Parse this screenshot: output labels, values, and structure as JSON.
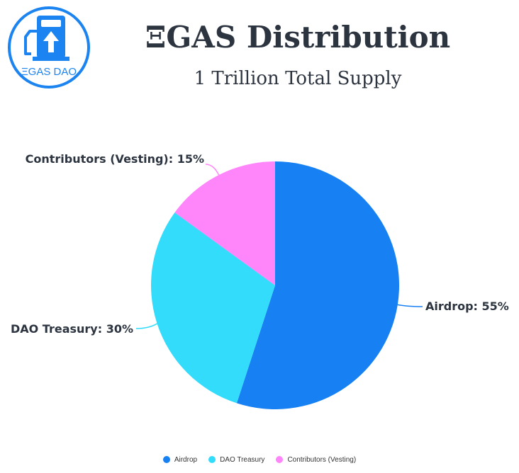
{
  "header": {
    "logo_text": "ΞGAS DAO",
    "title": "ΞGAS Distribution",
    "subtitle": "1 Trillion Total Supply"
  },
  "chart_data": {
    "type": "pie",
    "title": "ΞGAS Distribution",
    "subtitle": "1 Trillion Total Supply",
    "slices": [
      {
        "name": "Airdrop",
        "value": 55,
        "label": "Airdrop: 55%",
        "color": "#1780f3"
      },
      {
        "name": "DAO Treasury",
        "value": 30,
        "label": "DAO Treasury: 30%",
        "color": "#33dcfb"
      },
      {
        "name": "Contributors (Vesting)",
        "value": 15,
        "label": "Contributors (Vesting): 15%",
        "color": "#ff85fb"
      }
    ],
    "legend_position": "bottom"
  },
  "legend": {
    "items": [
      {
        "label": "Airdrop",
        "color": "#1780f3"
      },
      {
        "label": "DAO Treasury",
        "color": "#33dcfb"
      },
      {
        "label": "Contributors (Vesting)",
        "color": "#ff85fb"
      }
    ]
  }
}
